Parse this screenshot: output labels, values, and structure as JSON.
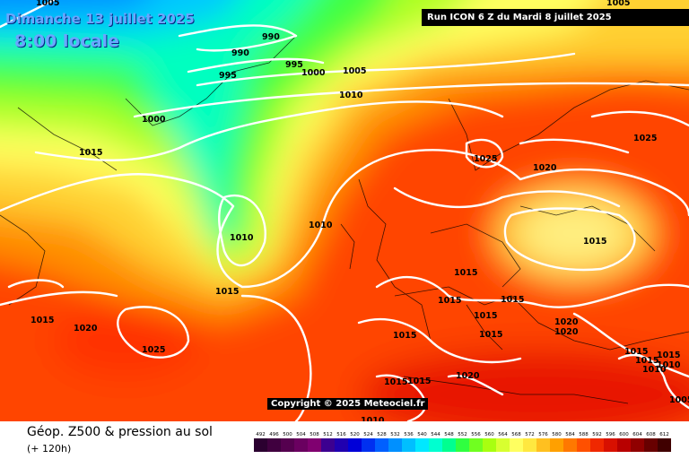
{
  "header": {
    "date_label": "Dimanche 13 juillet 2025",
    "time_label": "8:00 locale",
    "run_label": "Run ICON 6 Z du Mardi 8 juillet 2025"
  },
  "copyright": "Copyright © 2025 Meteociel.fr",
  "footer": {
    "title": "Géop. Z500 & pression au sol",
    "subtitle": "(+ 120h)"
  },
  "isobar_labels": [
    "1005",
    "990",
    "990",
    "995",
    "995",
    "1000",
    "1005",
    "1000",
    "1010",
    "1015",
    "1025",
    "1025",
    "1020",
    "1010",
    "1010",
    "1015",
    "1015",
    "1015",
    "1015",
    "1015",
    "1015",
    "1020",
    "1015",
    "1020",
    "1020",
    "1025",
    "1015",
    "1015",
    "1015",
    "1015",
    "1015",
    "1010",
    "1010",
    "1010",
    "1020",
    "1015",
    "1015",
    "1005",
    "1005"
  ],
  "legend": {
    "values": [
      "492",
      "496",
      "500",
      "504",
      "508",
      "512",
      "516",
      "520",
      "524",
      "528",
      "532",
      "536",
      "540",
      "544",
      "548",
      "552",
      "556",
      "560",
      "564",
      "568",
      "572",
      "576",
      "580",
      "584",
      "588",
      "592",
      "596",
      "600",
      "604",
      "608",
      "612"
    ],
    "colors": [
      "#2b0030",
      "#40003f",
      "#55004f",
      "#6a0060",
      "#800070",
      "#3c0090",
      "#2000b0",
      "#0000d8",
      "#0030f0",
      "#0060ff",
      "#0090ff",
      "#00bfff",
      "#00e8ff",
      "#00ffd0",
      "#00ff90",
      "#30ff40",
      "#70ff20",
      "#a8ff10",
      "#d8ff30",
      "#ffff60",
      "#ffe840",
      "#ffc020",
      "#ffa000",
      "#ff7800",
      "#ff5000",
      "#f02800",
      "#d81000",
      "#b80000",
      "#900000",
      "#680000",
      "#400000"
    ]
  }
}
